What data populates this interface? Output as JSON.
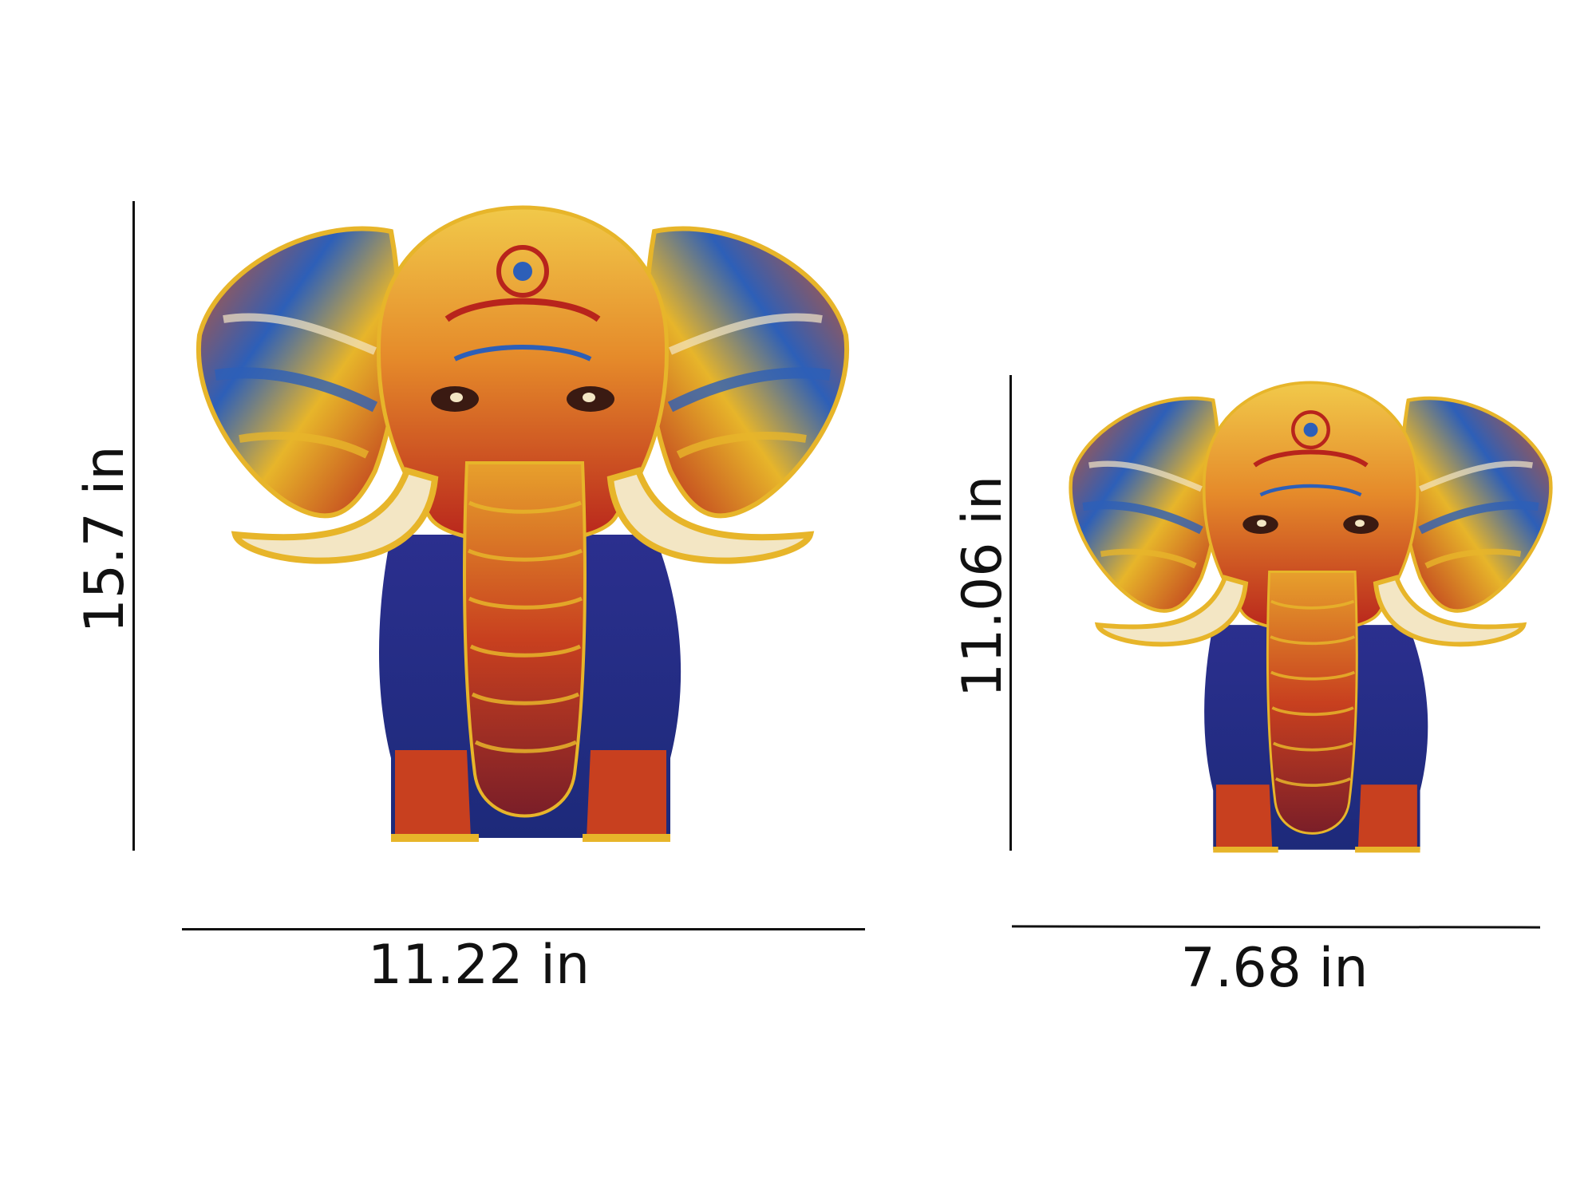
{
  "large_puzzle": {
    "height_label": "15.7 in",
    "width_label": "11.22 in"
  },
  "small_puzzle": {
    "height_label": "11.06 in",
    "width_label": "7.68 in"
  },
  "colors": {
    "ink": "#111111",
    "gold": "#e7b52a",
    "orange": "#d9531e",
    "red": "#b8241c",
    "blue": "#2d5fb8",
    "navy": "#1d2a7a",
    "cream": "#f3e6c4"
  }
}
